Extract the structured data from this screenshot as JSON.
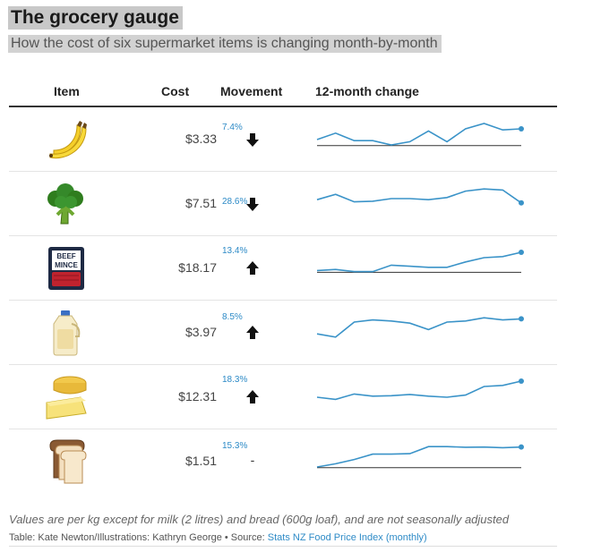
{
  "title": "The grocery gauge",
  "subtitle": "How the cost of six supermarket items is changing month-by-month",
  "headers": {
    "item": "Item",
    "cost": "Cost",
    "movement": "Movement",
    "change": "12-month change"
  },
  "rows": [
    {
      "item": "banana",
      "cost": "$3.33",
      "movement": "down",
      "movement_symbol": "",
      "change_label": "7.4%",
      "spark": [
        0.25,
        0.55,
        0.2,
        0.2,
        0.0,
        0.15,
        0.65,
        0.15,
        0.75,
        1.0,
        0.7,
        0.75
      ]
    },
    {
      "item": "broccoli",
      "cost": "$7.51",
      "movement": "down",
      "movement_symbol": "",
      "change_label": "28.6%",
      "spark": [
        0.45,
        0.7,
        0.35,
        0.38,
        0.5,
        0.5,
        0.45,
        0.55,
        0.85,
        0.95,
        0.9,
        0.3
      ]
    },
    {
      "item": "beef mince",
      "cost": "$18.17",
      "movement": "up",
      "movement_symbol": "",
      "change_label": "13.4%",
      "spark": [
        0.15,
        0.2,
        0.1,
        0.1,
        0.4,
        0.35,
        0.3,
        0.3,
        0.55,
        0.75,
        0.8,
        1.0
      ]
    },
    {
      "item": "milk",
      "cost": "$3.97",
      "movement": "up",
      "movement_symbol": "",
      "change_label": "8.5%",
      "spark": [
        0.2,
        0.05,
        0.75,
        0.85,
        0.8,
        0.7,
        0.4,
        0.75,
        0.8,
        0.95,
        0.85,
        0.9
      ]
    },
    {
      "item": "cheese",
      "cost": "$12.31",
      "movement": "up",
      "movement_symbol": "",
      "change_label": "18.3%",
      "spark": [
        0.25,
        0.15,
        0.4,
        0.3,
        0.32,
        0.38,
        0.3,
        0.25,
        0.35,
        0.75,
        0.8,
        1.0
      ]
    },
    {
      "item": "bread",
      "cost": "$1.51",
      "movement": "none",
      "movement_symbol": "-",
      "change_label": "15.3%",
      "spark": [
        0.0,
        0.15,
        0.35,
        0.6,
        0.6,
        0.62,
        0.95,
        0.95,
        0.92,
        0.93,
        0.9,
        0.93
      ]
    }
  ],
  "colors": {
    "spark_line": "#3a93c8",
    "baseline": "#333333",
    "header_rule": "#333333"
  },
  "footer": {
    "note": "Values are per kg except for milk (2 litres) and bread (600g loaf), and are not seasonally adjusted",
    "credit": "Table: Kate Newton/Illustrations: Kathryn George • Source: ",
    "source_link": "Stats NZ Food Price Index (monthly)"
  }
}
